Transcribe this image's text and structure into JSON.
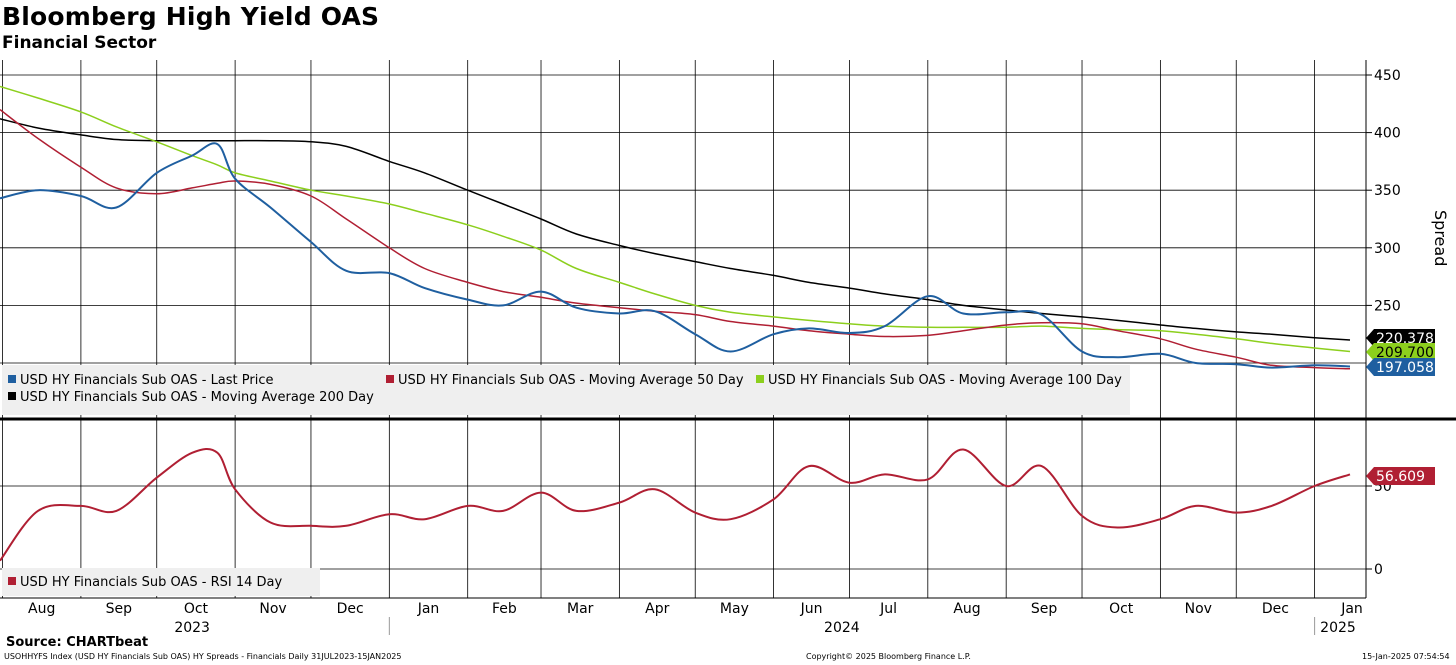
{
  "title": "Bloomberg High Yield OAS",
  "subtitle": "Financial Sector",
  "source": "Source: CHARTbeat",
  "footer": {
    "left": "USOHHYFS Index (USD HY Financials Sub OAS) HY Spreads - Financials  Daily 31JUL2023-15JAN2025",
    "center": "Copyright© 2025 Bloomberg Finance L.P.",
    "right": "15-Jan-2025 07:54:54"
  },
  "colors": {
    "last": "#1f5fa0",
    "ma50": "#b01f33",
    "ma100": "#8ccf1d",
    "ma200": "#000000",
    "rsi": "#b01f33"
  },
  "chart_data": [
    {
      "type": "line",
      "panel": "price",
      "ylabel": "Spread",
      "ylim": [
        160,
        460
      ],
      "yticks": [
        250,
        300,
        350,
        400,
        450
      ],
      "x_month_labels": [
        "Aug",
        "Sep",
        "Oct",
        "Nov",
        "Dec",
        "Jan",
        "Feb",
        "Mar",
        "Apr",
        "May",
        "Jun",
        "Jul",
        "Aug",
        "Sep",
        "Oct",
        "Nov",
        "Dec",
        "Jan"
      ],
      "x_year_labels": [
        "2023",
        "2024",
        "2025"
      ],
      "grid": true,
      "legend_position": "bottom-left",
      "x": [
        "2023-07-31",
        "2023-08-15",
        "2023-09-01",
        "2023-09-15",
        "2023-10-01",
        "2023-10-15",
        "2023-10-25",
        "2023-11-01",
        "2023-11-15",
        "2023-12-01",
        "2023-12-15",
        "2024-01-01",
        "2024-01-15",
        "2024-02-01",
        "2024-02-15",
        "2024-03-01",
        "2024-03-15",
        "2024-04-01",
        "2024-04-15",
        "2024-05-01",
        "2024-05-15",
        "2024-06-01",
        "2024-06-15",
        "2024-07-01",
        "2024-07-15",
        "2024-08-01",
        "2024-08-15",
        "2024-09-01",
        "2024-09-15",
        "2024-10-01",
        "2024-10-15",
        "2024-11-01",
        "2024-11-15",
        "2024-12-01",
        "2024-12-15",
        "2025-01-01",
        "2025-01-15"
      ],
      "series": [
        {
          "name": "USD HY Financials Sub OAS - Last Price",
          "color_key": "last",
          "last_value": "197.058",
          "values": [
            343,
            350,
            345,
            335,
            365,
            380,
            390,
            360,
            335,
            305,
            280,
            278,
            265,
            255,
            250,
            262,
            248,
            243,
            245,
            225,
            210,
            225,
            230,
            226,
            232,
            258,
            243,
            244,
            242,
            210,
            205,
            208,
            200,
            199,
            196,
            198,
            197
          ]
        },
        {
          "name": "USD HY Financials Sub OAS - Moving Average 50 Day",
          "color_key": "ma50",
          "last_value": "194.693",
          "values": [
            420,
            395,
            370,
            352,
            347,
            352,
            356,
            358,
            355,
            345,
            325,
            300,
            282,
            270,
            262,
            257,
            252,
            248,
            245,
            242,
            236,
            232,
            228,
            225,
            223,
            224,
            228,
            233,
            235,
            234,
            228,
            221,
            212,
            205,
            198,
            196,
            195
          ]
        },
        {
          "name": "USD HY Financials Sub OAS - Moving Average 100 Day",
          "color_key": "ma100",
          "last_value": "209.700",
          "values": [
            440,
            430,
            418,
            405,
            392,
            380,
            372,
            365,
            358,
            350,
            345,
            338,
            330,
            320,
            310,
            298,
            282,
            270,
            260,
            250,
            244,
            240,
            237,
            234,
            232,
            231,
            231,
            231,
            232,
            230,
            229,
            228,
            225,
            221,
            217,
            213,
            210
          ]
        },
        {
          "name": "USD HY Financials Sub OAS - Moving Average 200 Day",
          "color_key": "ma200",
          "last_value": "220.378",
          "values": [
            412,
            404,
            398,
            394,
            393,
            393,
            393,
            393,
            393,
            392,
            388,
            375,
            365,
            350,
            338,
            325,
            312,
            302,
            295,
            288,
            282,
            276,
            270,
            265,
            260,
            255,
            250,
            246,
            243,
            240,
            237,
            233,
            230,
            227,
            225,
            222,
            220
          ]
        }
      ]
    },
    {
      "type": "line",
      "panel": "rsi",
      "ylim": [
        -15,
        72
      ],
      "yticks": [
        0,
        50
      ],
      "x": [
        "2023-07-31",
        "2023-08-15",
        "2023-09-01",
        "2023-09-15",
        "2023-10-01",
        "2023-10-15",
        "2023-10-25",
        "2023-11-01",
        "2023-11-15",
        "2023-12-01",
        "2023-12-15",
        "2024-01-01",
        "2024-01-15",
        "2024-02-01",
        "2024-02-15",
        "2024-03-01",
        "2024-03-15",
        "2024-04-01",
        "2024-04-15",
        "2024-05-01",
        "2024-05-15",
        "2024-06-01",
        "2024-06-15",
        "2024-07-01",
        "2024-07-15",
        "2024-08-01",
        "2024-08-15",
        "2024-09-01",
        "2024-09-15",
        "2024-10-01",
        "2024-10-15",
        "2024-11-01",
        "2024-11-15",
        "2024-12-01",
        "2024-12-15",
        "2025-01-01",
        "2025-01-15"
      ],
      "series": [
        {
          "name": "USD HY Financials Sub OAS - RSI 14 Day",
          "color_key": "rsi",
          "last_value": "56.609",
          "values": [
            5,
            35,
            38,
            35,
            55,
            70,
            70,
            48,
            28,
            26,
            26,
            33,
            30,
            38,
            35,
            46,
            35,
            40,
            48,
            34,
            30,
            42,
            62,
            52,
            57,
            54,
            72,
            50,
            62,
            32,
            25,
            30,
            38,
            34,
            38,
            50,
            57
          ]
        }
      ]
    }
  ]
}
